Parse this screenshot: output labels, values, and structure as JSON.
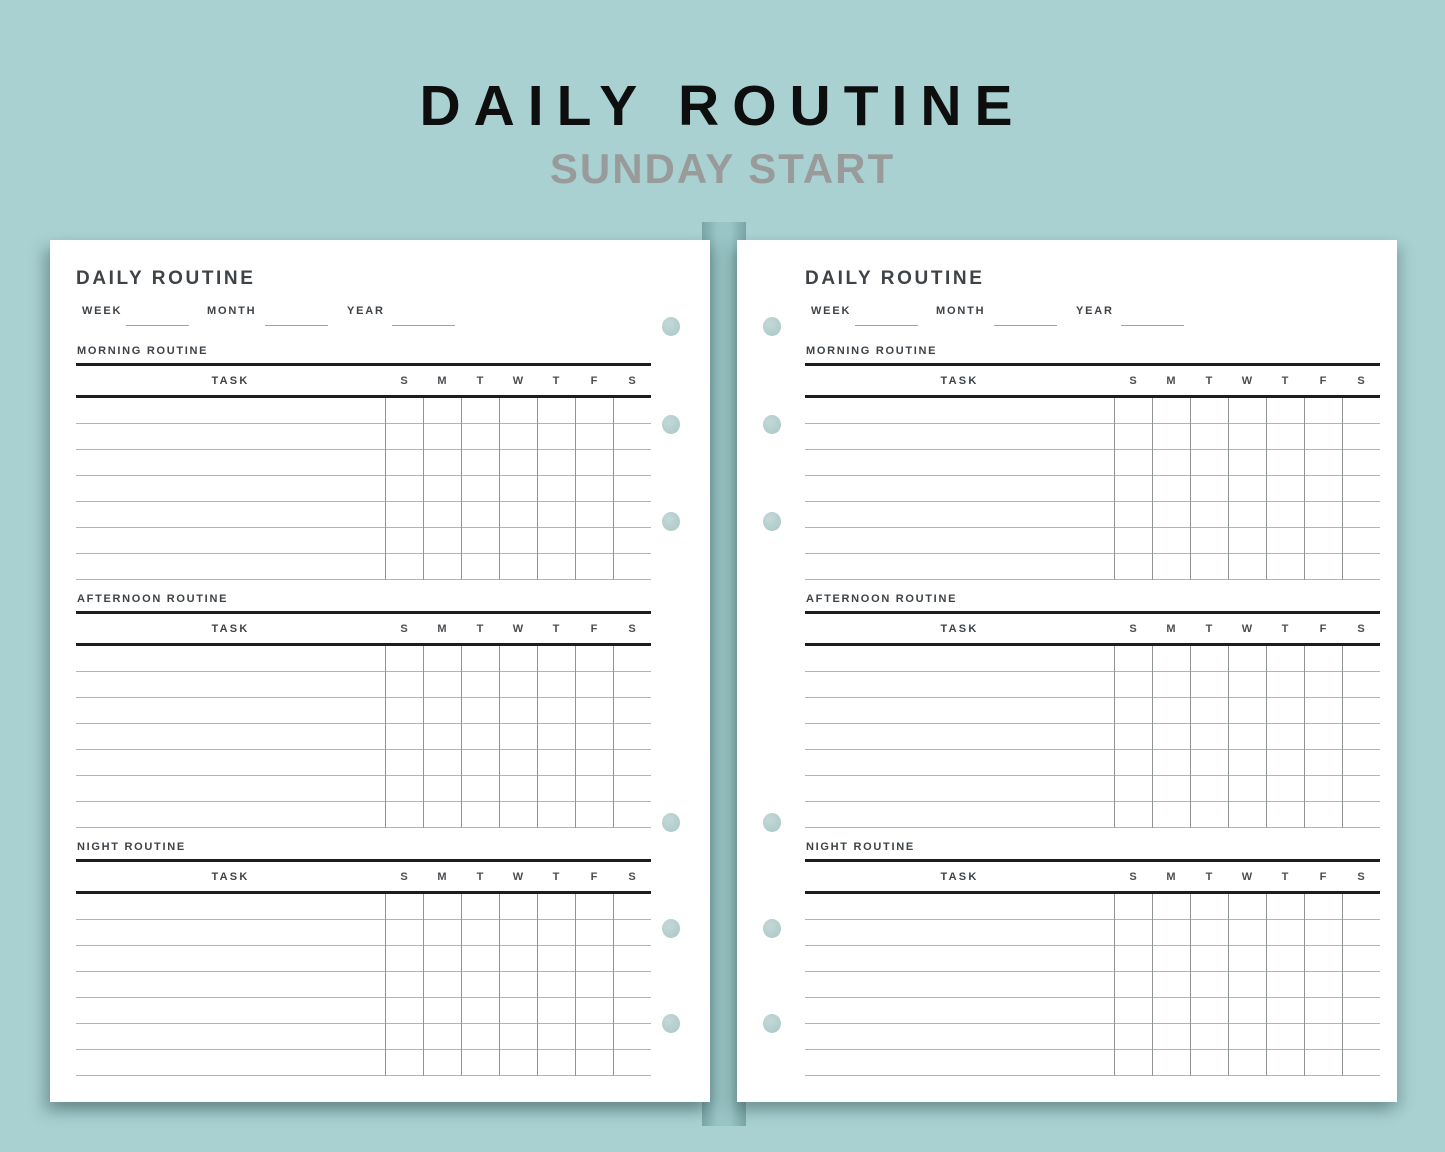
{
  "banner": {
    "title": "DAILY ROUTINE",
    "subtitle": "SUNDAY START"
  },
  "page": {
    "title": "DAILY ROUTINE",
    "fields": [
      {
        "label": "WEEK",
        "value": ""
      },
      {
        "label": "MONTH",
        "value": ""
      },
      {
        "label": "YEAR",
        "value": ""
      }
    ],
    "task_header": "TASK",
    "day_headers": [
      "S",
      "M",
      "T",
      "W",
      "T",
      "F",
      "S"
    ],
    "sections": [
      {
        "label": "MORNING ROUTINE",
        "rows": 7
      },
      {
        "label": "AFTERNOON ROUTINE",
        "rows": 7
      },
      {
        "label": "NIGHT ROUTINE",
        "rows": 7
      }
    ]
  },
  "colors": {
    "background": "#a9d1d2",
    "page": "#ffffff",
    "hole": "#b1cdcc",
    "rule_dark": "#1d1d1d",
    "rule_light": "#b1b5b5",
    "text": "#3e4347",
    "banner_text": "#0e0e0e",
    "banner_subtitle": "#999b9a"
  }
}
